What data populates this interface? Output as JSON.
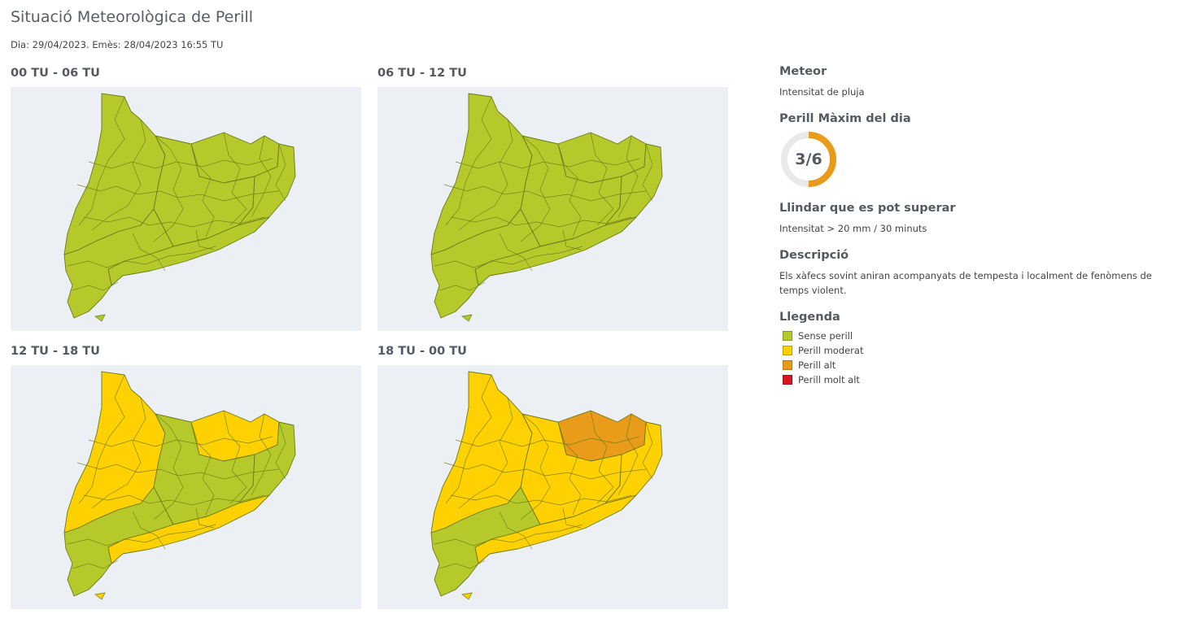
{
  "header": {
    "title": "Situació Meteorològica de Perill",
    "subtitle": "Dia: 29/04/2023. Emès: 28/04/2023 16:55 TU"
  },
  "maps": [
    {
      "label": "00 TU - 06 TU",
      "west": "#b5c92b",
      "central": "#b5c92b",
      "east": "#b5c92b",
      "high": "#b5c92b",
      "south": "#b5c92b",
      "coast": "#b5c92b"
    },
    {
      "label": "06 TU - 12 TU",
      "west": "#b5c92b",
      "central": "#b5c92b",
      "east": "#b5c92b",
      "high": "#b5c92b",
      "south": "#b5c92b",
      "coast": "#b5c92b"
    },
    {
      "label": "12 TU - 18 TU",
      "west": "#ffd100",
      "central": "#b5c92b",
      "east": "#b5c92b",
      "high": "#ffd100",
      "south": "#b5c92b",
      "coast": "#ffd100"
    },
    {
      "label": "18 TU - 00 TU",
      "west": "#ffd100",
      "central": "#ffd100",
      "east": "#ffd100",
      "high": "#e89c1a",
      "south": "#b5c92b",
      "coast": "#ffd100"
    }
  ],
  "sidebar": {
    "meteor_title": "Meteor",
    "meteor_value": "Intensitat de pluja",
    "max_title": "Perill Màxim del dia",
    "max_value": "3/6",
    "max_level": 3,
    "max_total": 6,
    "gauge_color": "#e89c1a",
    "threshold_title": "Llindar que es pot superar",
    "threshold_value": "Intensitat > 20 mm / 30 minuts",
    "description_title": "Descripció",
    "description_value": "Els xàfecs sovint aniran acompanyats de tempesta i localment de fenòmens de temps violent.",
    "legend_title": "Llegenda",
    "legend": [
      {
        "label": "Sense perill",
        "color": "#b5c92b"
      },
      {
        "label": "Perill moderat",
        "color": "#ffd100"
      },
      {
        "label": "Perill alt",
        "color": "#e89c1a"
      },
      {
        "label": "Perill molt alt",
        "color": "#d9151e"
      }
    ]
  }
}
